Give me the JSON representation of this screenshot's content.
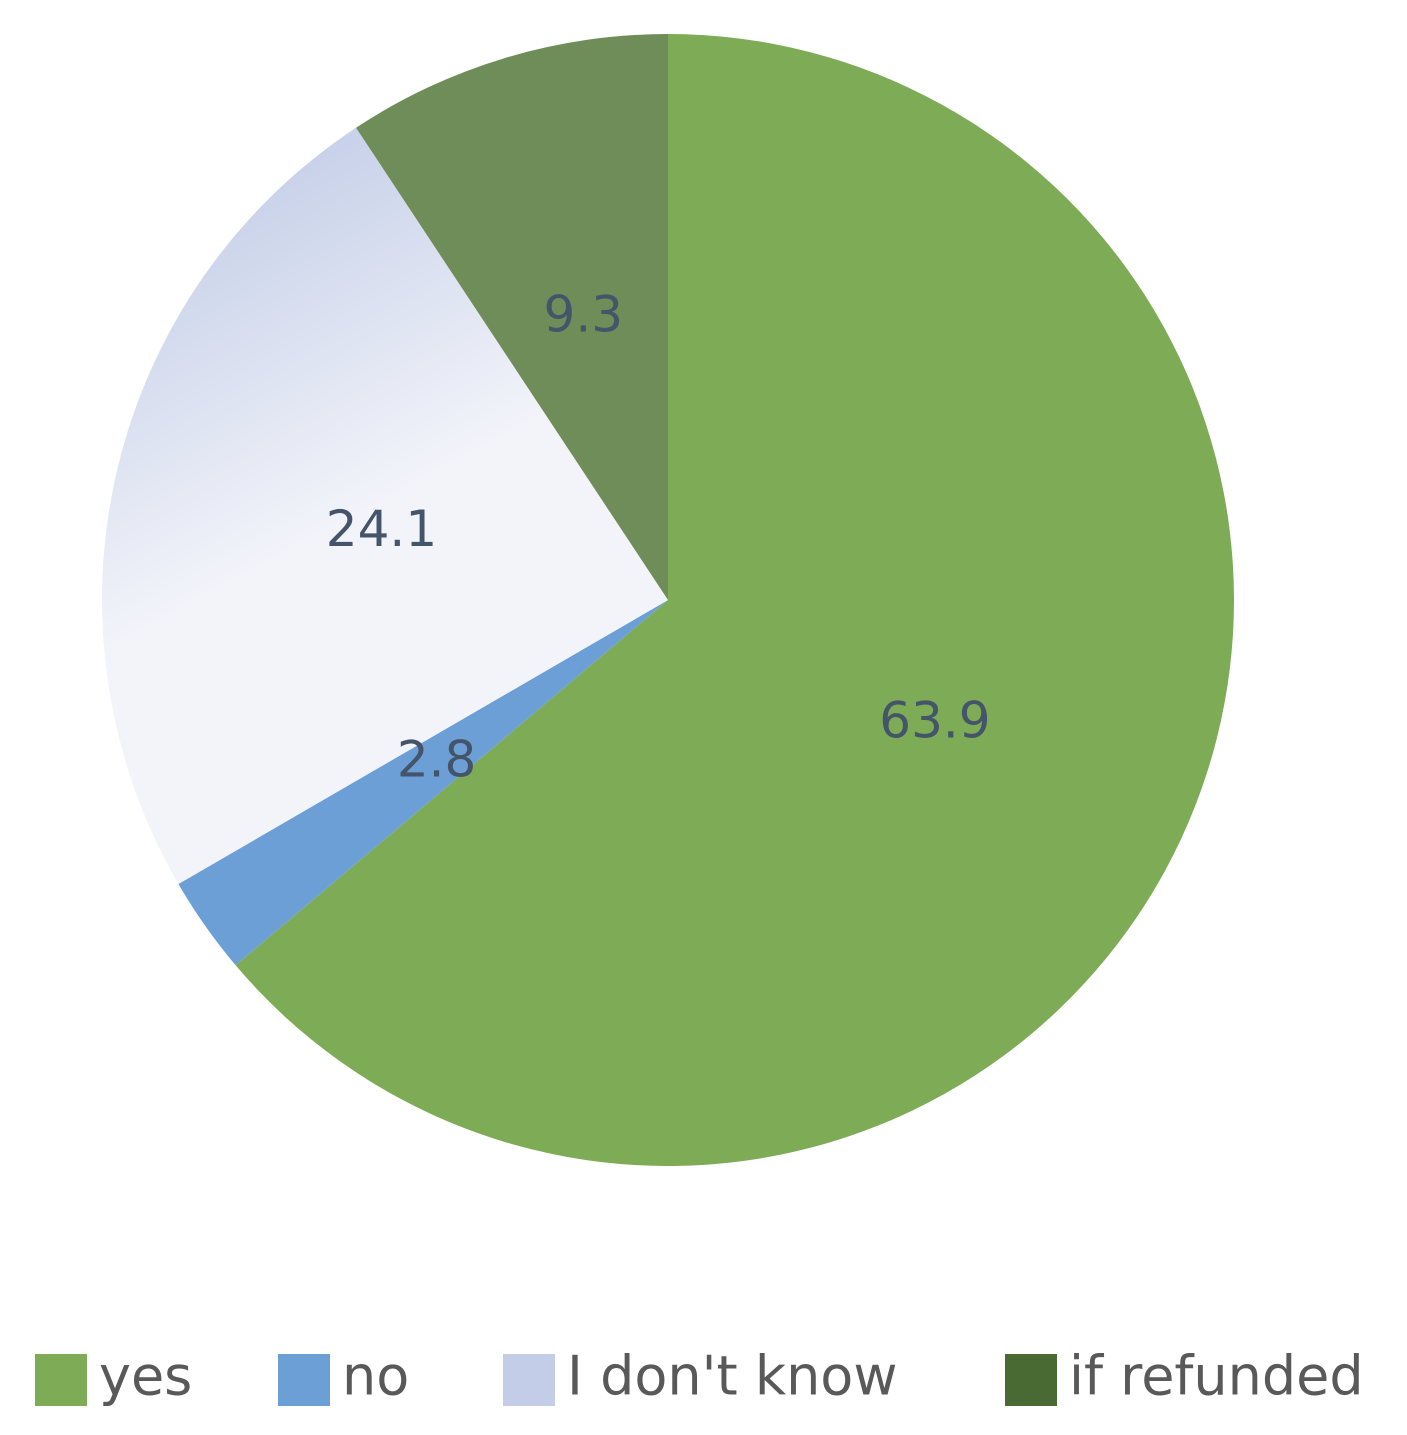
{
  "chart_data": {
    "type": "pie",
    "categories": [
      "yes",
      "no",
      "I don't know",
      "if refunded"
    ],
    "values": [
      63.9,
      2.8,
      24.1,
      9.3
    ],
    "colors": [
      "#7eab55",
      "#6b9fd6",
      "#dde3f2",
      "#6e8d58"
    ],
    "legend": "bottom"
  }
}
